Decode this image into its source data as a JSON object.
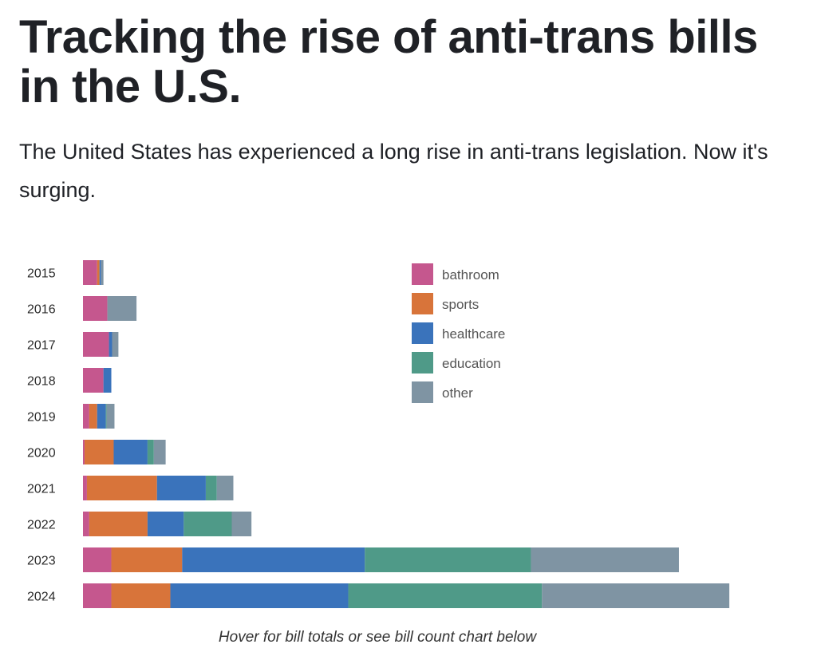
{
  "header": {
    "title": "Tracking the rise of anti-trans bills in the U.S.",
    "subtitle": "The United States has experienced a long rise in anti-trans legislation. Now it's surging."
  },
  "note": "Hover for bill totals or see bill count chart below",
  "colors": {
    "bathroom": "#c5578e",
    "sports": "#d8743a",
    "healthcare": "#3a73bb",
    "education": "#4f9a88",
    "other": "#7f94a3"
  },
  "chart_data": {
    "type": "bar",
    "orientation": "horizontal",
    "stacked": true,
    "categories": [
      "2015",
      "2016",
      "2017",
      "2018",
      "2019",
      "2020",
      "2021",
      "2022",
      "2023",
      "2024"
    ],
    "series": [
      {
        "name": "bathroom",
        "values": [
          18,
          31,
          33,
          26,
          8,
          2,
          5,
          8,
          36,
          36
        ]
      },
      {
        "name": "sports",
        "values": [
          3,
          0,
          0,
          0,
          10,
          37,
          89,
          74,
          90,
          75
        ]
      },
      {
        "name": "healthcare",
        "values": [
          2,
          0,
          4,
          10,
          11,
          43,
          62,
          46,
          232,
          226
        ]
      },
      {
        "name": "education",
        "values": [
          0,
          0,
          0,
          0,
          1,
          8,
          14,
          61,
          211,
          246
        ]
      },
      {
        "name": "other",
        "values": [
          3,
          37,
          8,
          0,
          10,
          15,
          21,
          25,
          188,
          238
        ]
      }
    ],
    "legend": [
      "bathroom",
      "sports",
      "healthcare",
      "education",
      "other"
    ],
    "legend_position": "top-right",
    "xlim": [
      0,
      830
    ],
    "grid": false,
    "title": "",
    "xlabel": "",
    "ylabel": ""
  }
}
